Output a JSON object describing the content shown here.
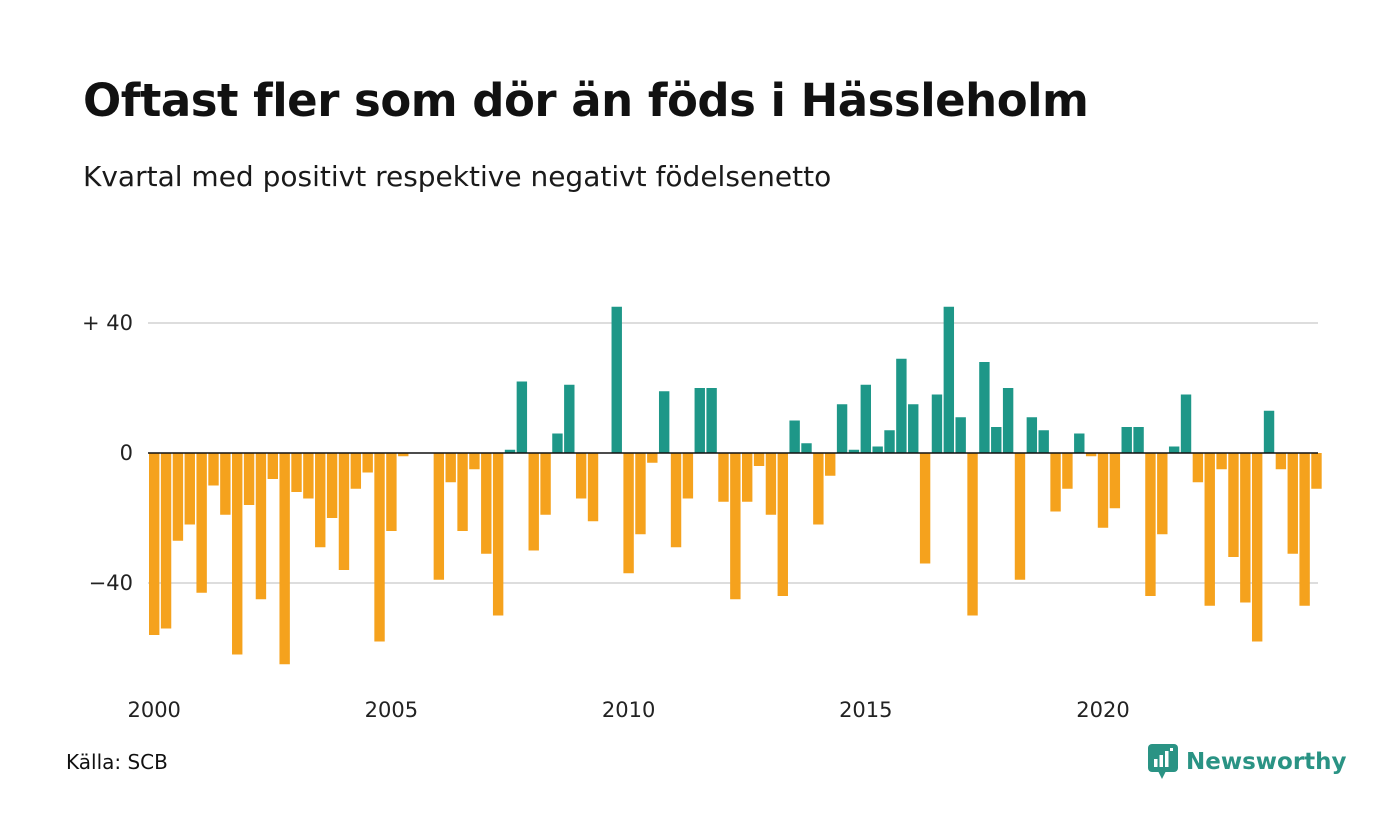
{
  "title": "Oftast fler som dör än föds i Hässleholm",
  "subtitle": "Kvartal med positivt respektive negativt födelsenetto",
  "source": "Källa: SCB",
  "brand": "Newsworthy",
  "colors": {
    "positive": "#1e9788",
    "negative": "#f5a21d",
    "grid": "#dddddd",
    "brand": "#2a9384"
  },
  "chart_data": {
    "type": "bar",
    "x_start": "2000-Q1",
    "y_ticks": [
      {
        "value": 40,
        "label": "+ 40"
      },
      {
        "value": 0,
        "label": "0"
      },
      {
        "value": -40,
        "label": "−40"
      }
    ],
    "x_ticks": [
      {
        "value": 2000,
        "label": "2000"
      },
      {
        "value": 2005,
        "label": "2005"
      },
      {
        "value": 2010,
        "label": "2010"
      },
      {
        "value": 2015,
        "label": "2015"
      },
      {
        "value": 2020,
        "label": "2020"
      }
    ],
    "ylim": [
      -70,
      45
    ],
    "values": [
      -56,
      -54,
      -27,
      -22,
      -43,
      -10,
      -19,
      -62,
      -16,
      -45,
      -8,
      -65,
      -12,
      -14,
      -29,
      -20,
      -36,
      -11,
      -6,
      -58,
      -24,
      -1,
      0,
      0,
      -39,
      -9,
      -24,
      -5,
      -31,
      -50,
      1,
      22,
      -30,
      -19,
      6,
      21,
      -14,
      -21,
      0,
      45,
      -37,
      -25,
      -3,
      19,
      -29,
      -14,
      20,
      20,
      -15,
      -45,
      -15,
      -4,
      -19,
      -44,
      10,
      3,
      -22,
      -7,
      15,
      1,
      21,
      2,
      7,
      29,
      15,
      -34,
      18,
      45,
      11,
      -50,
      28,
      8,
      20,
      -39,
      11,
      7,
      -18,
      -11,
      6,
      -1,
      -23,
      -17,
      8,
      8,
      -44,
      -25,
      2,
      18,
      -9,
      -47,
      -5,
      -32,
      -46,
      -58,
      13,
      -5,
      -31,
      -47,
      -11
    ]
  }
}
